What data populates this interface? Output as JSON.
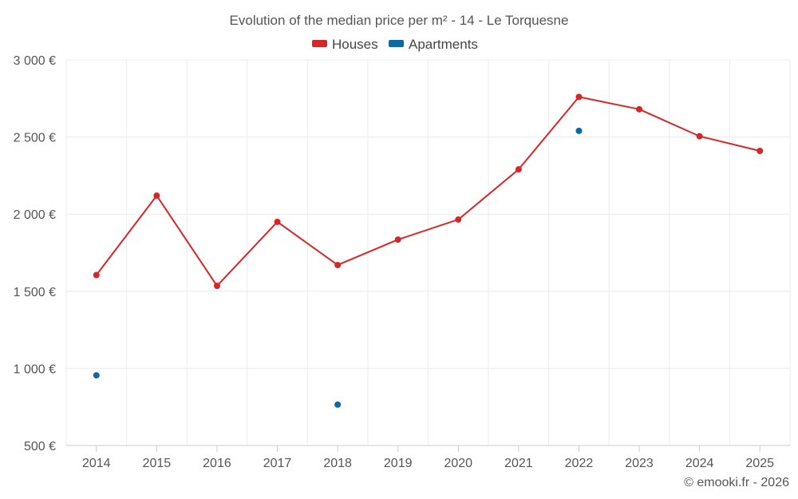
{
  "chart_data": {
    "type": "line",
    "title": "Evolution of the median price per m² - 14 - Le Torquesne",
    "categories": [
      "2014",
      "2015",
      "2016",
      "2017",
      "2018",
      "2019",
      "2020",
      "2021",
      "2022",
      "2023",
      "2024",
      "2025"
    ],
    "series": [
      {
        "name": "Houses",
        "color": "#d62728",
        "values": [
          1605,
          2120,
          1535,
          1950,
          1670,
          1835,
          1965,
          2290,
          2760,
          2680,
          2505,
          2410
        ]
      },
      {
        "name": "Apartments",
        "color": "#0a6aa1",
        "values": [
          955,
          null,
          null,
          null,
          765,
          null,
          null,
          null,
          2540,
          null,
          null,
          null
        ]
      }
    ],
    "ylim": [
      500,
      3000
    ],
    "yticks": [
      500,
      1000,
      1500,
      2000,
      2500,
      3000
    ],
    "ytick_labels": [
      "500 €",
      "1 000 €",
      "1 500 €",
      "2 000 €",
      "2 500 €",
      "3 000 €"
    ],
    "xlabel": "",
    "ylabel": "",
    "grid": true,
    "legend_position": "top-center"
  },
  "credit": "© emooki.fr - 2026"
}
